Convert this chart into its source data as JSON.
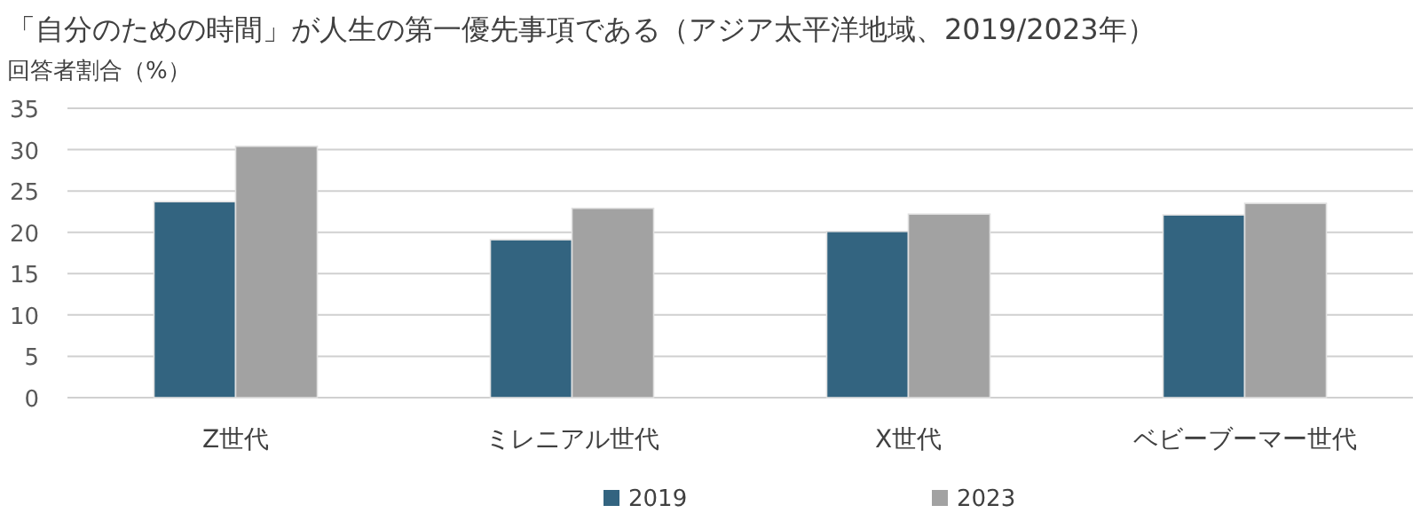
{
  "chart_data": {
    "type": "bar",
    "title": "「自分のための時間」が人生の第一優先事項である（アジア太平洋地域、2019/2023年）",
    "ylabel": "回答者割合（%）",
    "categories": [
      "Z世代",
      "ミレニアル世代",
      "X世代",
      "ベビーブーマー世代"
    ],
    "series": [
      {
        "name": "2019",
        "color": "#336480",
        "values": [
          23.7,
          19.1,
          20.1,
          22.1
        ]
      },
      {
        "name": "2023",
        "color": "#a2a2a2",
        "values": [
          30.4,
          22.9,
          22.2,
          23.5
        ]
      }
    ],
    "ylim": [
      0,
      35
    ],
    "yticks": [
      0,
      5,
      10,
      15,
      20,
      25,
      30,
      35
    ],
    "grid": "y",
    "legend": "bottom"
  }
}
